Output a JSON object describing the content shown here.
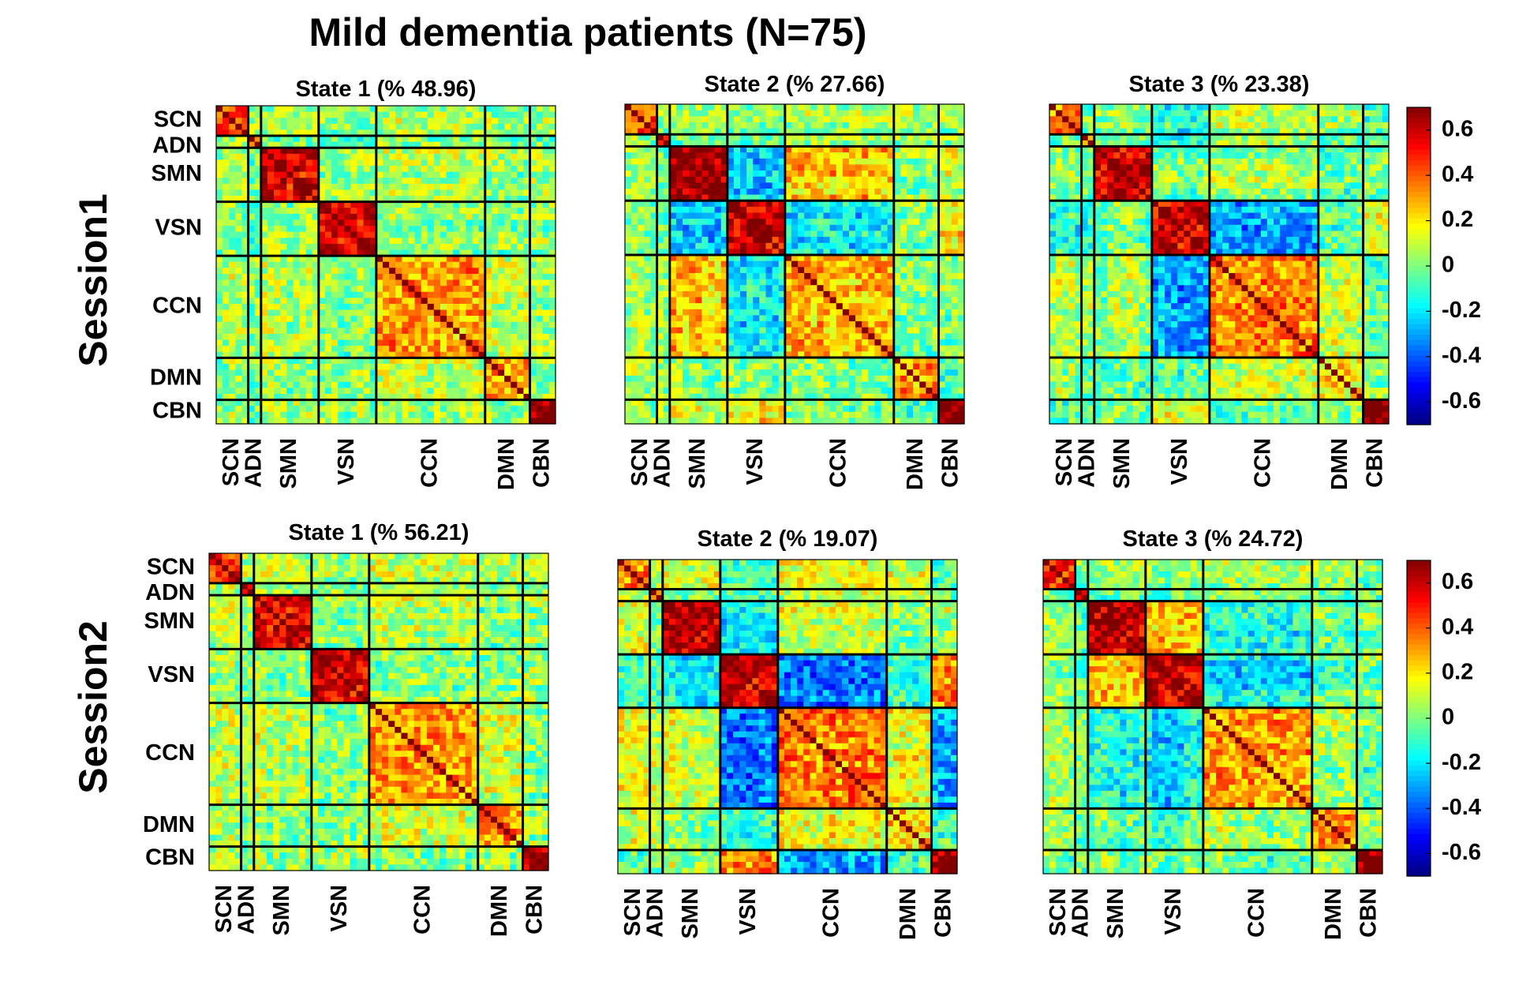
{
  "chart_data": {
    "type": "heatmap",
    "title": "Mild dementia patients (N=75)",
    "networks": [
      "SCN",
      "ADN",
      "SMN",
      "VSN",
      "CCN",
      "DMN",
      "CBN"
    ],
    "network_sizes": [
      5,
      2,
      9,
      9,
      17,
      7,
      4
    ],
    "colormap": "jet",
    "clim": [
      -0.7,
      0.7
    ],
    "colorbar_ticks": [
      "0.6",
      "0.4",
      "0.2",
      "0",
      "-0.2",
      "-0.4",
      "-0.6"
    ],
    "colorbar_tick_values": [
      0.6,
      0.4,
      0.2,
      0,
      -0.2,
      -0.4,
      -0.6
    ],
    "sessions": [
      {
        "label": "Session1",
        "states": [
          {
            "title": "State 1 (% 48.96)",
            "state": 1,
            "percent": 48.96,
            "block_means": [
              [
                0.45,
                0.05,
                0.08,
                0.02,
                0.08,
                0.05,
                0.05
              ],
              [
                0.05,
                0.5,
                0.02,
                0.0,
                0.05,
                0.0,
                0.0
              ],
              [
                0.08,
                0.02,
                0.55,
                0.0,
                0.05,
                0.0,
                0.05
              ],
              [
                0.02,
                0.0,
                0.0,
                0.55,
                0.0,
                0.0,
                0.0
              ],
              [
                0.08,
                0.05,
                0.05,
                0.0,
                0.3,
                0.1,
                0.05
              ],
              [
                0.05,
                0.0,
                0.0,
                0.0,
                0.1,
                0.3,
                0.02
              ],
              [
                0.05,
                0.0,
                0.05,
                0.0,
                0.05,
                0.02,
                0.65
              ]
            ]
          },
          {
            "title": "State 2 (% 27.66)",
            "state": 2,
            "percent": 27.66,
            "block_means": [
              [
                0.4,
                0.0,
                0.05,
                0.0,
                0.05,
                0.05,
                0.0
              ],
              [
                0.0,
                0.45,
                -0.05,
                -0.05,
                0.0,
                0.0,
                0.0
              ],
              [
                0.05,
                -0.05,
                0.65,
                -0.25,
                0.25,
                0.0,
                0.1
              ],
              [
                0.0,
                -0.05,
                -0.25,
                0.6,
                -0.2,
                0.0,
                0.2
              ],
              [
                0.05,
                0.0,
                0.25,
                -0.2,
                0.25,
                0.0,
                0.0
              ],
              [
                0.05,
                0.0,
                0.0,
                0.0,
                0.0,
                0.3,
                -0.05
              ],
              [
                0.0,
                0.0,
                0.1,
                0.2,
                0.0,
                -0.05,
                0.7
              ]
            ]
          },
          {
            "title": "State 3 (% 23.38)",
            "state": 3,
            "percent": 23.38,
            "block_means": [
              [
                0.4,
                0.0,
                0.05,
                -0.1,
                0.1,
                0.05,
                -0.05
              ],
              [
                0.0,
                0.45,
                0.0,
                -0.1,
                0.1,
                0.0,
                0.0
              ],
              [
                0.05,
                0.0,
                0.6,
                0.0,
                0.05,
                -0.05,
                0.0
              ],
              [
                -0.1,
                -0.1,
                0.0,
                0.6,
                -0.3,
                -0.05,
                0.15
              ],
              [
                0.1,
                0.1,
                0.05,
                -0.3,
                0.35,
                0.1,
                -0.05
              ],
              [
                0.05,
                0.0,
                -0.05,
                -0.05,
                0.1,
                0.2,
                0.0
              ],
              [
                -0.05,
                0.0,
                0.0,
                0.15,
                -0.05,
                0.0,
                0.7
              ]
            ]
          }
        ]
      },
      {
        "label": "Session2",
        "states": [
          {
            "title": "State 1 (% 56.21)",
            "state": 1,
            "percent": 56.21,
            "block_means": [
              [
                0.45,
                0.05,
                0.05,
                0.02,
                0.08,
                0.05,
                0.05
              ],
              [
                0.05,
                0.5,
                0.02,
                0.0,
                0.05,
                0.0,
                0.0
              ],
              [
                0.05,
                0.02,
                0.55,
                0.0,
                0.08,
                0.0,
                0.05
              ],
              [
                0.02,
                0.0,
                0.0,
                0.55,
                0.0,
                0.0,
                0.05
              ],
              [
                0.08,
                0.05,
                0.08,
                0.0,
                0.3,
                0.1,
                0.0
              ],
              [
                0.05,
                0.0,
                0.0,
                0.0,
                0.1,
                0.3,
                0.02
              ],
              [
                0.05,
                0.0,
                0.05,
                0.05,
                0.0,
                0.02,
                0.65
              ]
            ]
          },
          {
            "title": "State 2 (% 19.07)",
            "state": 2,
            "percent": 19.07,
            "block_means": [
              [
                0.35,
                0.05,
                0.1,
                -0.1,
                0.15,
                0.1,
                -0.1
              ],
              [
                0.05,
                0.4,
                0.0,
                -0.1,
                0.1,
                0.05,
                0.0
              ],
              [
                0.1,
                0.0,
                0.6,
                -0.2,
                0.1,
                0.0,
                0.05
              ],
              [
                -0.1,
                -0.1,
                -0.2,
                0.6,
                -0.35,
                -0.1,
                0.35
              ],
              [
                0.15,
                0.1,
                0.1,
                -0.35,
                0.35,
                0.15,
                -0.3
              ],
              [
                0.1,
                0.05,
                0.0,
                -0.1,
                0.15,
                0.25,
                -0.1
              ],
              [
                -0.1,
                0.0,
                0.05,
                0.35,
                -0.3,
                -0.1,
                0.7
              ]
            ]
          },
          {
            "title": "State 3 (% 24.72)",
            "state": 3,
            "percent": 24.72,
            "block_means": [
              [
                0.45,
                0.0,
                0.05,
                0.0,
                0.05,
                0.05,
                0.0
              ],
              [
                0.0,
                0.45,
                0.0,
                0.0,
                0.05,
                0.0,
                0.0
              ],
              [
                0.05,
                0.0,
                0.6,
                0.25,
                -0.15,
                -0.05,
                0.0
              ],
              [
                0.0,
                0.0,
                0.25,
                0.6,
                -0.2,
                -0.05,
                0.0
              ],
              [
                0.05,
                0.05,
                -0.15,
                -0.2,
                0.3,
                0.05,
                -0.05
              ],
              [
                0.05,
                0.0,
                -0.05,
                -0.05,
                0.05,
                0.3,
                0.0
              ],
              [
                0.0,
                0.0,
                0.0,
                0.0,
                -0.05,
                0.0,
                0.7
              ]
            ]
          }
        ]
      }
    ]
  }
}
